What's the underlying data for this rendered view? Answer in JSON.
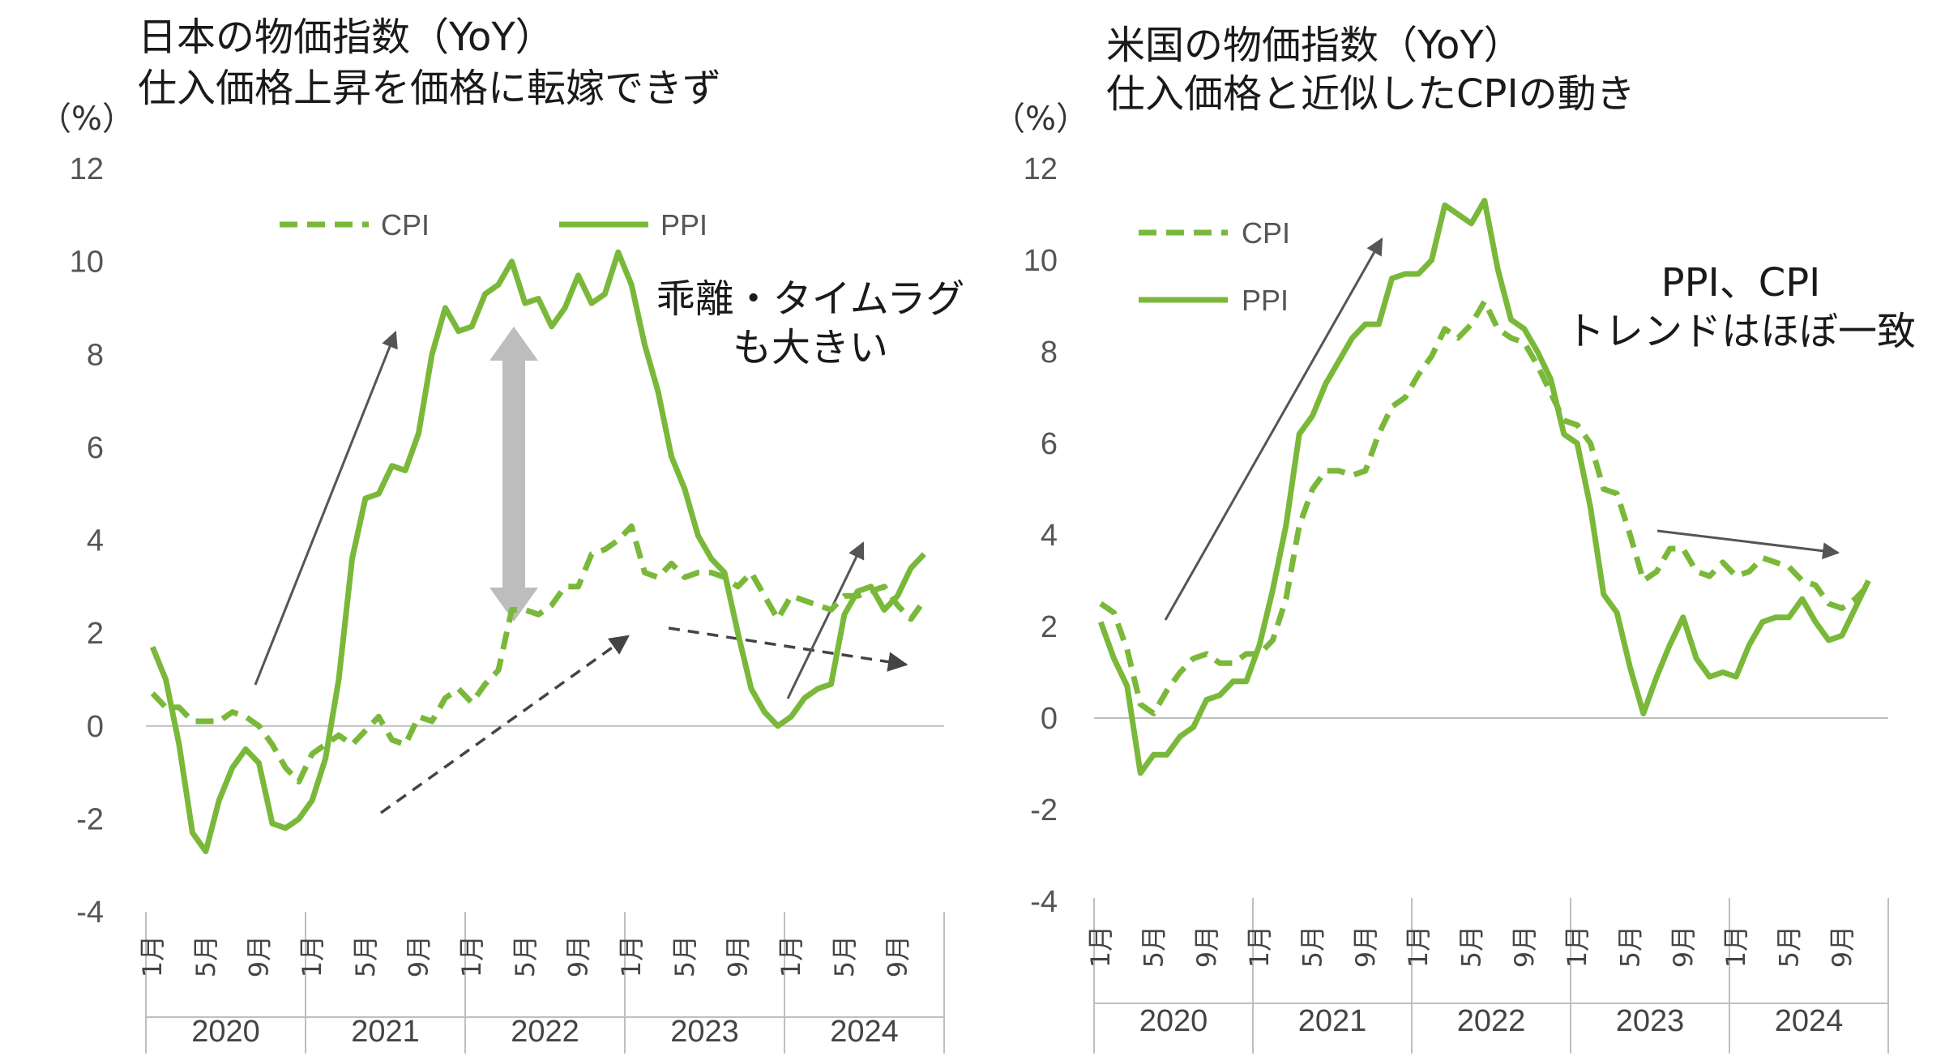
{
  "colors": {
    "series": "#7ab83a",
    "arrow": "#555555",
    "dashed_arrow": "#444444",
    "gap_arrow": "#bdbdbd",
    "axis": "#bfbfbf"
  },
  "chart_data": [
    {
      "id": "japan",
      "type": "line",
      "title_line1": "日本の物価指数（YoY）",
      "title_line2": "仕入価格上昇を価格に転嫁できず",
      "unit_label": "（%）",
      "ylim": [
        -4,
        12
      ],
      "yticks": [
        "-4",
        "-2",
        "0",
        "2",
        "4",
        "6",
        "8",
        "10",
        "12"
      ],
      "ytick_values": [
        -4,
        -2,
        0,
        2,
        4,
        6,
        8,
        10,
        12
      ],
      "years": [
        "2020",
        "2021",
        "2022",
        "2023",
        "2024"
      ],
      "month_labels": [
        "1月",
        "5月",
        "9月"
      ],
      "annotation_lines": [
        "乖離・タイムラグ",
        "も大きい"
      ],
      "legend": {
        "cpi": "CPI",
        "ppi": "PPI"
      },
      "series": [
        {
          "name": "CPI",
          "style": "dashed",
          "values": [
            0.7,
            0.4,
            0.4,
            0.1,
            0.1,
            0.1,
            0.3,
            0.2,
            0.0,
            -0.4,
            -0.9,
            -1.2,
            -0.6,
            -0.4,
            -0.2,
            -0.4,
            -0.1,
            0.2,
            -0.3,
            -0.4,
            0.2,
            0.1,
            0.6,
            0.8,
            0.5,
            0.9,
            1.2,
            2.5,
            2.5,
            2.4,
            2.6,
            3.0,
            3.0,
            3.7,
            3.8,
            4.0,
            4.3,
            3.3,
            3.2,
            3.5,
            3.2,
            3.3,
            3.3,
            3.2,
            3.0,
            3.3,
            2.8,
            2.3,
            2.8,
            2.7,
            2.6,
            2.5,
            2.8,
            2.8,
            2.9,
            3.0,
            2.6,
            2.3,
            2.7
          ]
        },
        {
          "name": "PPI",
          "style": "solid",
          "values": [
            1.7,
            1.0,
            -0.4,
            -2.3,
            -2.7,
            -1.6,
            -0.9,
            -0.5,
            -0.8,
            -2.1,
            -2.2,
            -2.0,
            -1.6,
            -0.7,
            1.0,
            3.6,
            4.9,
            5.0,
            5.6,
            5.5,
            6.3,
            8.0,
            9.0,
            8.5,
            8.6,
            9.3,
            9.5,
            10.0,
            9.1,
            9.2,
            8.6,
            9.0,
            9.7,
            9.1,
            9.3,
            10.2,
            9.5,
            8.2,
            7.2,
            5.8,
            5.1,
            4.1,
            3.6,
            3.3,
            2.0,
            0.8,
            0.3,
            0.0,
            0.2,
            0.6,
            0.8,
            0.9,
            2.4,
            2.9,
            3.0,
            2.5,
            2.8,
            3.4,
            3.7
          ]
        }
      ]
    },
    {
      "id": "usa",
      "type": "line",
      "title_line1": "米国の物価指数（YoY）",
      "title_line2": "仕入価格と近似したCPIの動き",
      "unit_label": "（%）",
      "ylim": [
        -4,
        12
      ],
      "yticks": [
        "-4",
        "-2",
        "0",
        "2",
        "4",
        "6",
        "8",
        "10",
        "12"
      ],
      "ytick_values": [
        -4,
        -2,
        0,
        2,
        4,
        6,
        8,
        10,
        12
      ],
      "years": [
        "2020",
        "2021",
        "2022",
        "2023",
        "2024"
      ],
      "month_labels": [
        "1月",
        "5月",
        "9月"
      ],
      "annotation_lines": [
        "PPI、CPI",
        "トレンドはほぼ一致"
      ],
      "legend": {
        "cpi": "CPI",
        "ppi": "PPI"
      },
      "series": [
        {
          "name": "CPI",
          "style": "dashed",
          "values": [
            2.5,
            2.3,
            1.5,
            0.3,
            0.1,
            0.6,
            1.0,
            1.3,
            1.4,
            1.2,
            1.2,
            1.4,
            1.4,
            1.7,
            2.6,
            4.2,
            5.0,
            5.4,
            5.4,
            5.3,
            5.4,
            6.2,
            6.8,
            7.0,
            7.5,
            7.9,
            8.5,
            8.3,
            8.6,
            9.1,
            8.5,
            8.3,
            8.2,
            7.7,
            7.1,
            6.5,
            6.4,
            6.0,
            5.0,
            4.9,
            4.0,
            3.0,
            3.2,
            3.7,
            3.7,
            3.2,
            3.1,
            3.4,
            3.1,
            3.2,
            3.5,
            3.4,
            3.3,
            3.0,
            2.9,
            2.5,
            2.4,
            2.6,
            2.9
          ]
        },
        {
          "name": "PPI",
          "style": "solid",
          "values": [
            2.1,
            1.3,
            0.7,
            -1.2,
            -0.8,
            -0.8,
            -0.4,
            -0.2,
            0.4,
            0.5,
            0.8,
            0.8,
            1.6,
            2.8,
            4.2,
            6.2,
            6.6,
            7.3,
            7.8,
            8.3,
            8.6,
            8.6,
            9.6,
            9.7,
            9.7,
            10.0,
            11.2,
            11.0,
            10.8,
            11.3,
            9.8,
            8.7,
            8.5,
            8.0,
            7.4,
            6.2,
            6.0,
            4.6,
            2.7,
            2.3,
            1.1,
            0.1,
            0.9,
            1.6,
            2.2,
            1.3,
            0.9,
            1.0,
            0.9,
            1.6,
            2.1,
            2.2,
            2.2,
            2.6,
            2.1,
            1.7,
            1.8,
            2.4,
            3.0
          ]
        }
      ]
    }
  ]
}
